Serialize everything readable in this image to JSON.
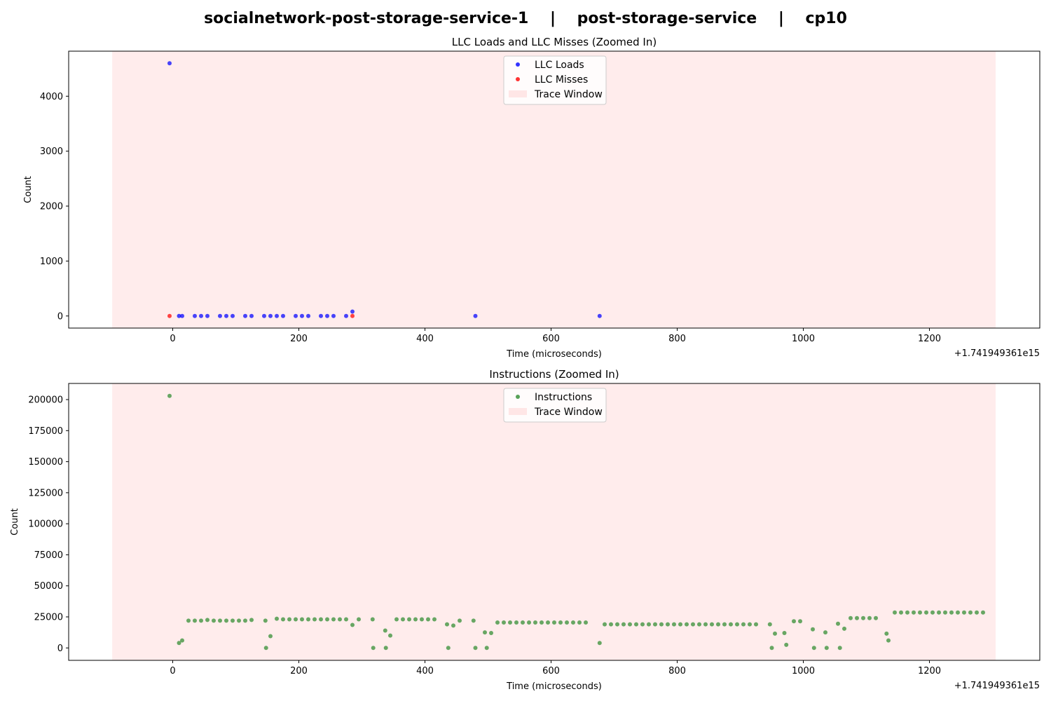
{
  "figure_title": "socialnetwork-post-storage-service-1    |    post-storage-service    |    cp10",
  "colors": {
    "llc_loads": "#0000ff",
    "llc_misses": "#ff0000",
    "instructions": "#2e8b2e",
    "trace_window": "#ffe0e0"
  },
  "chart_data": [
    {
      "type": "scatter",
      "title": "LLC Loads and LLC Misses (Zoomed In)",
      "xlabel": "Time (microseconds)",
      "ylabel": "Count",
      "x_offset_label": "+1.741949361e15",
      "xlim": [
        -165,
        1375
      ],
      "ylim": [
        -220,
        4820
      ],
      "xticks": [
        0,
        200,
        400,
        600,
        800,
        1000,
        1200
      ],
      "yticks": [
        0,
        1000,
        2000,
        3000,
        4000
      ],
      "grid": false,
      "legend_position": "upper center",
      "trace_window": [
        -96,
        1305
      ],
      "series": [
        {
          "name": "LLC Loads",
          "color": "#0000ff",
          "points": [
            [
              -5,
              4600
            ],
            [
              10,
              0
            ],
            [
              15,
              0
            ],
            [
              35,
              0
            ],
            [
              45,
              0
            ],
            [
              55,
              0
            ],
            [
              75,
              0
            ],
            [
              85,
              0
            ],
            [
              95,
              0
            ],
            [
              115,
              0
            ],
            [
              125,
              0
            ],
            [
              145,
              0
            ],
            [
              155,
              0
            ],
            [
              165,
              0
            ],
            [
              175,
              0
            ],
            [
              195,
              0
            ],
            [
              205,
              0
            ],
            [
              215,
              0
            ],
            [
              235,
              0
            ],
            [
              245,
              0
            ],
            [
              255,
              0
            ],
            [
              275,
              0
            ],
            [
              285,
              80
            ],
            [
              480,
              0
            ],
            [
              677,
              0
            ]
          ]
        },
        {
          "name": "LLC Misses",
          "color": "#ff0000",
          "points": [
            [
              -5,
              0
            ],
            [
              285,
              0
            ]
          ]
        }
      ],
      "legend_entries": [
        "LLC Loads",
        "LLC Misses",
        "Trace Window"
      ]
    },
    {
      "type": "scatter",
      "title": "Instructions (Zoomed In)",
      "xlabel": "Time (microseconds)",
      "ylabel": "Count",
      "x_offset_label": "+1.741949361e15",
      "xlim": [
        -165,
        1375
      ],
      "ylim": [
        -10000,
        213000
      ],
      "xticks": [
        0,
        200,
        400,
        600,
        800,
        1000,
        1200
      ],
      "yticks": [
        0,
        25000,
        50000,
        75000,
        100000,
        125000,
        150000,
        175000,
        200000
      ],
      "grid": false,
      "legend_position": "upper center",
      "trace_window": [
        -96,
        1305
      ],
      "series": [
        {
          "name": "Instructions",
          "color": "#2e8b2e",
          "points": [
            [
              -5,
              203000
            ],
            [
              10,
              4000
            ],
            [
              15,
              6000
            ],
            [
              25,
              22000
            ],
            [
              35,
              22000
            ],
            [
              45,
              22000
            ],
            [
              55,
              22500
            ],
            [
              65,
              22000
            ],
            [
              75,
              22000
            ],
            [
              85,
              22000
            ],
            [
              95,
              22000
            ],
            [
              105,
              22000
            ],
            [
              115,
              22000
            ],
            [
              125,
              22500
            ],
            [
              147,
              22000
            ],
            [
              148,
              0
            ],
            [
              155,
              9500
            ],
            [
              165,
              23500
            ],
            [
              175,
              23000
            ],
            [
              185,
              23000
            ],
            [
              195,
              23000
            ],
            [
              205,
              23000
            ],
            [
              215,
              23000
            ],
            [
              225,
              23000
            ],
            [
              235,
              23000
            ],
            [
              245,
              23000
            ],
            [
              255,
              23000
            ],
            [
              265,
              23000
            ],
            [
              275,
              23000
            ],
            [
              285,
              18500
            ],
            [
              295,
              23000
            ],
            [
              317,
              23000
            ],
            [
              318,
              0
            ],
            [
              337,
              14000
            ],
            [
              338,
              0
            ],
            [
              345,
              10000
            ],
            [
              355,
              23000
            ],
            [
              365,
              23000
            ],
            [
              375,
              23000
            ],
            [
              385,
              23000
            ],
            [
              395,
              23000
            ],
            [
              405,
              23000
            ],
            [
              415,
              23000
            ],
            [
              435,
              19000
            ],
            [
              437,
              0
            ],
            [
              445,
              18000
            ],
            [
              455,
              22000
            ],
            [
              477,
              22000
            ],
            [
              480,
              0
            ],
            [
              495,
              12500
            ],
            [
              498,
              0
            ],
            [
              505,
              12000
            ],
            [
              515,
              20500
            ],
            [
              525,
              20500
            ],
            [
              535,
              20500
            ],
            [
              545,
              20500
            ],
            [
              555,
              20500
            ],
            [
              565,
              20500
            ],
            [
              575,
              20500
            ],
            [
              585,
              20500
            ],
            [
              595,
              20500
            ],
            [
              605,
              20500
            ],
            [
              615,
              20500
            ],
            [
              625,
              20500
            ],
            [
              635,
              20500
            ],
            [
              645,
              20500
            ],
            [
              655,
              20500
            ],
            [
              677,
              4000
            ],
            [
              685,
              19000
            ],
            [
              695,
              19000
            ],
            [
              705,
              19000
            ],
            [
              715,
              19000
            ],
            [
              725,
              19000
            ],
            [
              735,
              19000
            ],
            [
              745,
              19000
            ],
            [
              755,
              19000
            ],
            [
              765,
              19000
            ],
            [
              775,
              19000
            ],
            [
              785,
              19000
            ],
            [
              795,
              19000
            ],
            [
              805,
              19000
            ],
            [
              815,
              19000
            ],
            [
              825,
              19000
            ],
            [
              835,
              19000
            ],
            [
              845,
              19000
            ],
            [
              855,
              19000
            ],
            [
              865,
              19000
            ],
            [
              875,
              19000
            ],
            [
              885,
              19000
            ],
            [
              895,
              19000
            ],
            [
              905,
              19000
            ],
            [
              915,
              19000
            ],
            [
              925,
              19000
            ],
            [
              947,
              19000
            ],
            [
              950,
              0
            ],
            [
              955,
              11500
            ],
            [
              970,
              12000
            ],
            [
              973,
              2500
            ],
            [
              985,
              21500
            ],
            [
              995,
              21500
            ],
            [
              1015,
              15000
            ],
            [
              1017,
              0
            ],
            [
              1035,
              12500
            ],
            [
              1037,
              0
            ],
            [
              1055,
              19500
            ],
            [
              1058,
              0
            ],
            [
              1065,
              15500
            ],
            [
              1075,
              24000
            ],
            [
              1085,
              24000
            ],
            [
              1095,
              24000
            ],
            [
              1105,
              24000
            ],
            [
              1115,
              24000
            ],
            [
              1132,
              11500
            ],
            [
              1135,
              6000
            ],
            [
              1145,
              28500
            ],
            [
              1155,
              28500
            ],
            [
              1165,
              28500
            ],
            [
              1175,
              28500
            ],
            [
              1185,
              28500
            ],
            [
              1195,
              28500
            ],
            [
              1205,
              28500
            ],
            [
              1215,
              28500
            ],
            [
              1225,
              28500
            ],
            [
              1235,
              28500
            ],
            [
              1245,
              28500
            ],
            [
              1255,
              28500
            ],
            [
              1265,
              28500
            ],
            [
              1275,
              28500
            ],
            [
              1285,
              28500
            ]
          ]
        }
      ],
      "legend_entries": [
        "Instructions",
        "Trace Window"
      ]
    }
  ]
}
